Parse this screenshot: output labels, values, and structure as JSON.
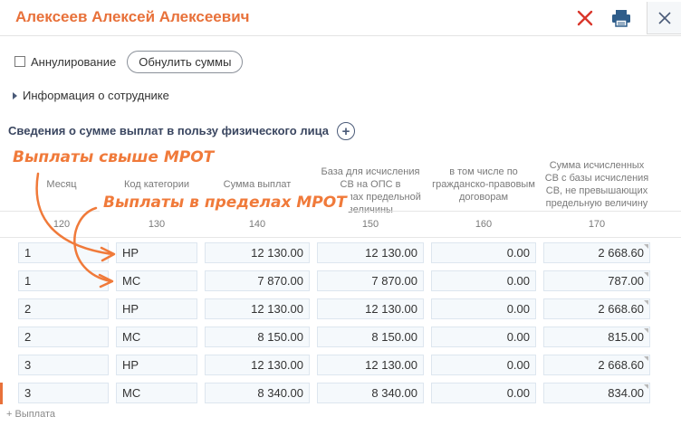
{
  "window": {
    "title": "Алексеев Алексей Алексеевич",
    "delete_icon": "close-x-icon",
    "print_icon": "printer-icon",
    "close_icon": "close-icon"
  },
  "toolbar": {
    "annul_label": "Аннулирование",
    "annul_checked": false,
    "reset_label": "Обнулить суммы"
  },
  "employee_info": {
    "label": "Информация о сотруднике"
  },
  "section": {
    "title": "Сведения о сумме выплат в пользу физического лица",
    "add_icon": "plus-circle-icon"
  },
  "table": {
    "headers": [
      {
        "label": "Месяц",
        "code": "120"
      },
      {
        "label": "Код категории",
        "code": "130"
      },
      {
        "label": "Сумма выплат",
        "code": "140"
      },
      {
        "label": "База для исчисления СВ на ОПС в пределах предельной величины",
        "code": "150"
      },
      {
        "label": "в том числе по гражданско-правовым договорам",
        "code": "160"
      },
      {
        "label": "Сумма исчисленных СВ с базы исчисления СВ, не превышающих предельную величину",
        "code": "170"
      }
    ],
    "rows": [
      {
        "month": "1",
        "category": "НР",
        "sum": "12 130.00",
        "base": "12 130.00",
        "gpd": "0.00",
        "contrib": "2 668.60"
      },
      {
        "month": "1",
        "category": "МС",
        "sum": "7 870.00",
        "base": "7 870.00",
        "gpd": "0.00",
        "contrib": "787.00"
      },
      {
        "month": "2",
        "category": "НР",
        "sum": "12 130.00",
        "base": "12 130.00",
        "gpd": "0.00",
        "contrib": "2 668.60"
      },
      {
        "month": "2",
        "category": "МС",
        "sum": "8 150.00",
        "base": "8 150.00",
        "gpd": "0.00",
        "contrib": "815.00"
      },
      {
        "month": "3",
        "category": "НР",
        "sum": "12 130.00",
        "base": "12 130.00",
        "gpd": "0.00",
        "contrib": "2 668.60"
      },
      {
        "month": "3",
        "category": "МС",
        "sum": "8 340.00",
        "base": "8 340.00",
        "gpd": "0.00",
        "contrib": "834.00"
      }
    ]
  },
  "annotations": {
    "above_mrot": "Выплаты свыше МРОТ",
    "within_mrot": "Выплаты в пределах МРОТ"
  },
  "footer": {
    "add_payout": "+ Выплата"
  },
  "colors": {
    "accent": "#e8713a",
    "title_blue": "#3a4660",
    "cell_bg": "#f5f9fc"
  }
}
